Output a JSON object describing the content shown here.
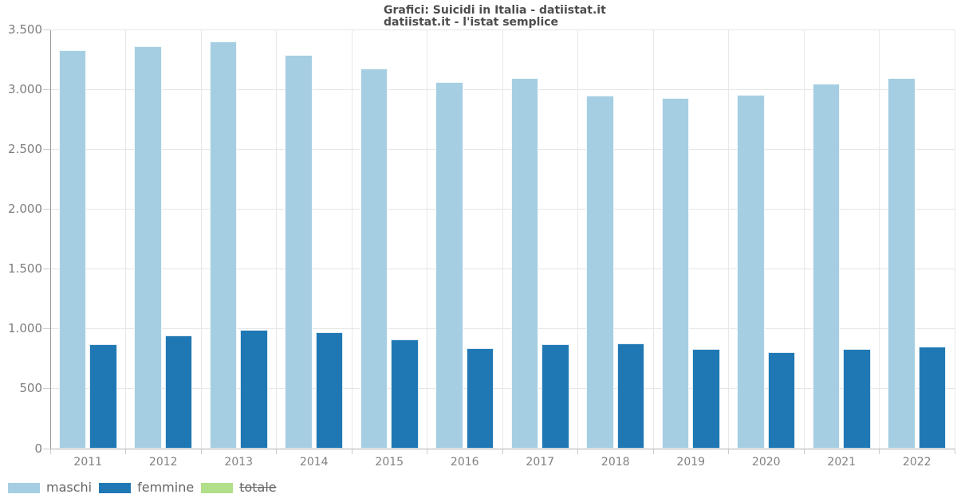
{
  "chart_data": {
    "type": "bar",
    "title": "Grafici: Suicidi in Italia - datiistat.it",
    "subtitle": "datiistat.it - l'istat semplice",
    "categories": [
      "2011",
      "2012",
      "2013",
      "2014",
      "2015",
      "2016",
      "2017",
      "2018",
      "2019",
      "2020",
      "2021",
      "2022"
    ],
    "series": [
      {
        "name": "maschi",
        "color": "#a6cee3",
        "visible": true,
        "values": [
          3330,
          3365,
          3405,
          3290,
          3180,
          3065,
          3095,
          2950,
          2930,
          2955,
          3050,
          3100
        ]
      },
      {
        "name": "femmine",
        "color": "#1f78b4",
        "visible": true,
        "values": [
          870,
          945,
          990,
          975,
          910,
          840,
          870,
          878,
          832,
          805,
          835,
          850
        ]
      },
      {
        "name": "totale",
        "color": "#b2df8a",
        "visible": false,
        "values": []
      }
    ],
    "ylim": [
      0,
      3500
    ],
    "ytick_interval": 500,
    "ytick_labels": [
      "0",
      "500",
      "1.000",
      "1.500",
      "2.000",
      "2.500",
      "3.000",
      "3.500"
    ],
    "grid": true,
    "legend_position": "bottom-left",
    "legend": [
      {
        "label": "maschi",
        "color": "#a6cee3",
        "active": true
      },
      {
        "label": "femmine",
        "color": "#1f78b4",
        "active": true
      },
      {
        "label": "totale",
        "color": "#b2df8a",
        "active": false
      }
    ]
  },
  "theme": {
    "background": "#ffffff",
    "title_color": "#4d4d4d",
    "axis_label_color": "#808080",
    "legend_text_color": "#666666",
    "gridline_color": "#e6e6e6",
    "axis_line_color": "#9a9a9a"
  }
}
